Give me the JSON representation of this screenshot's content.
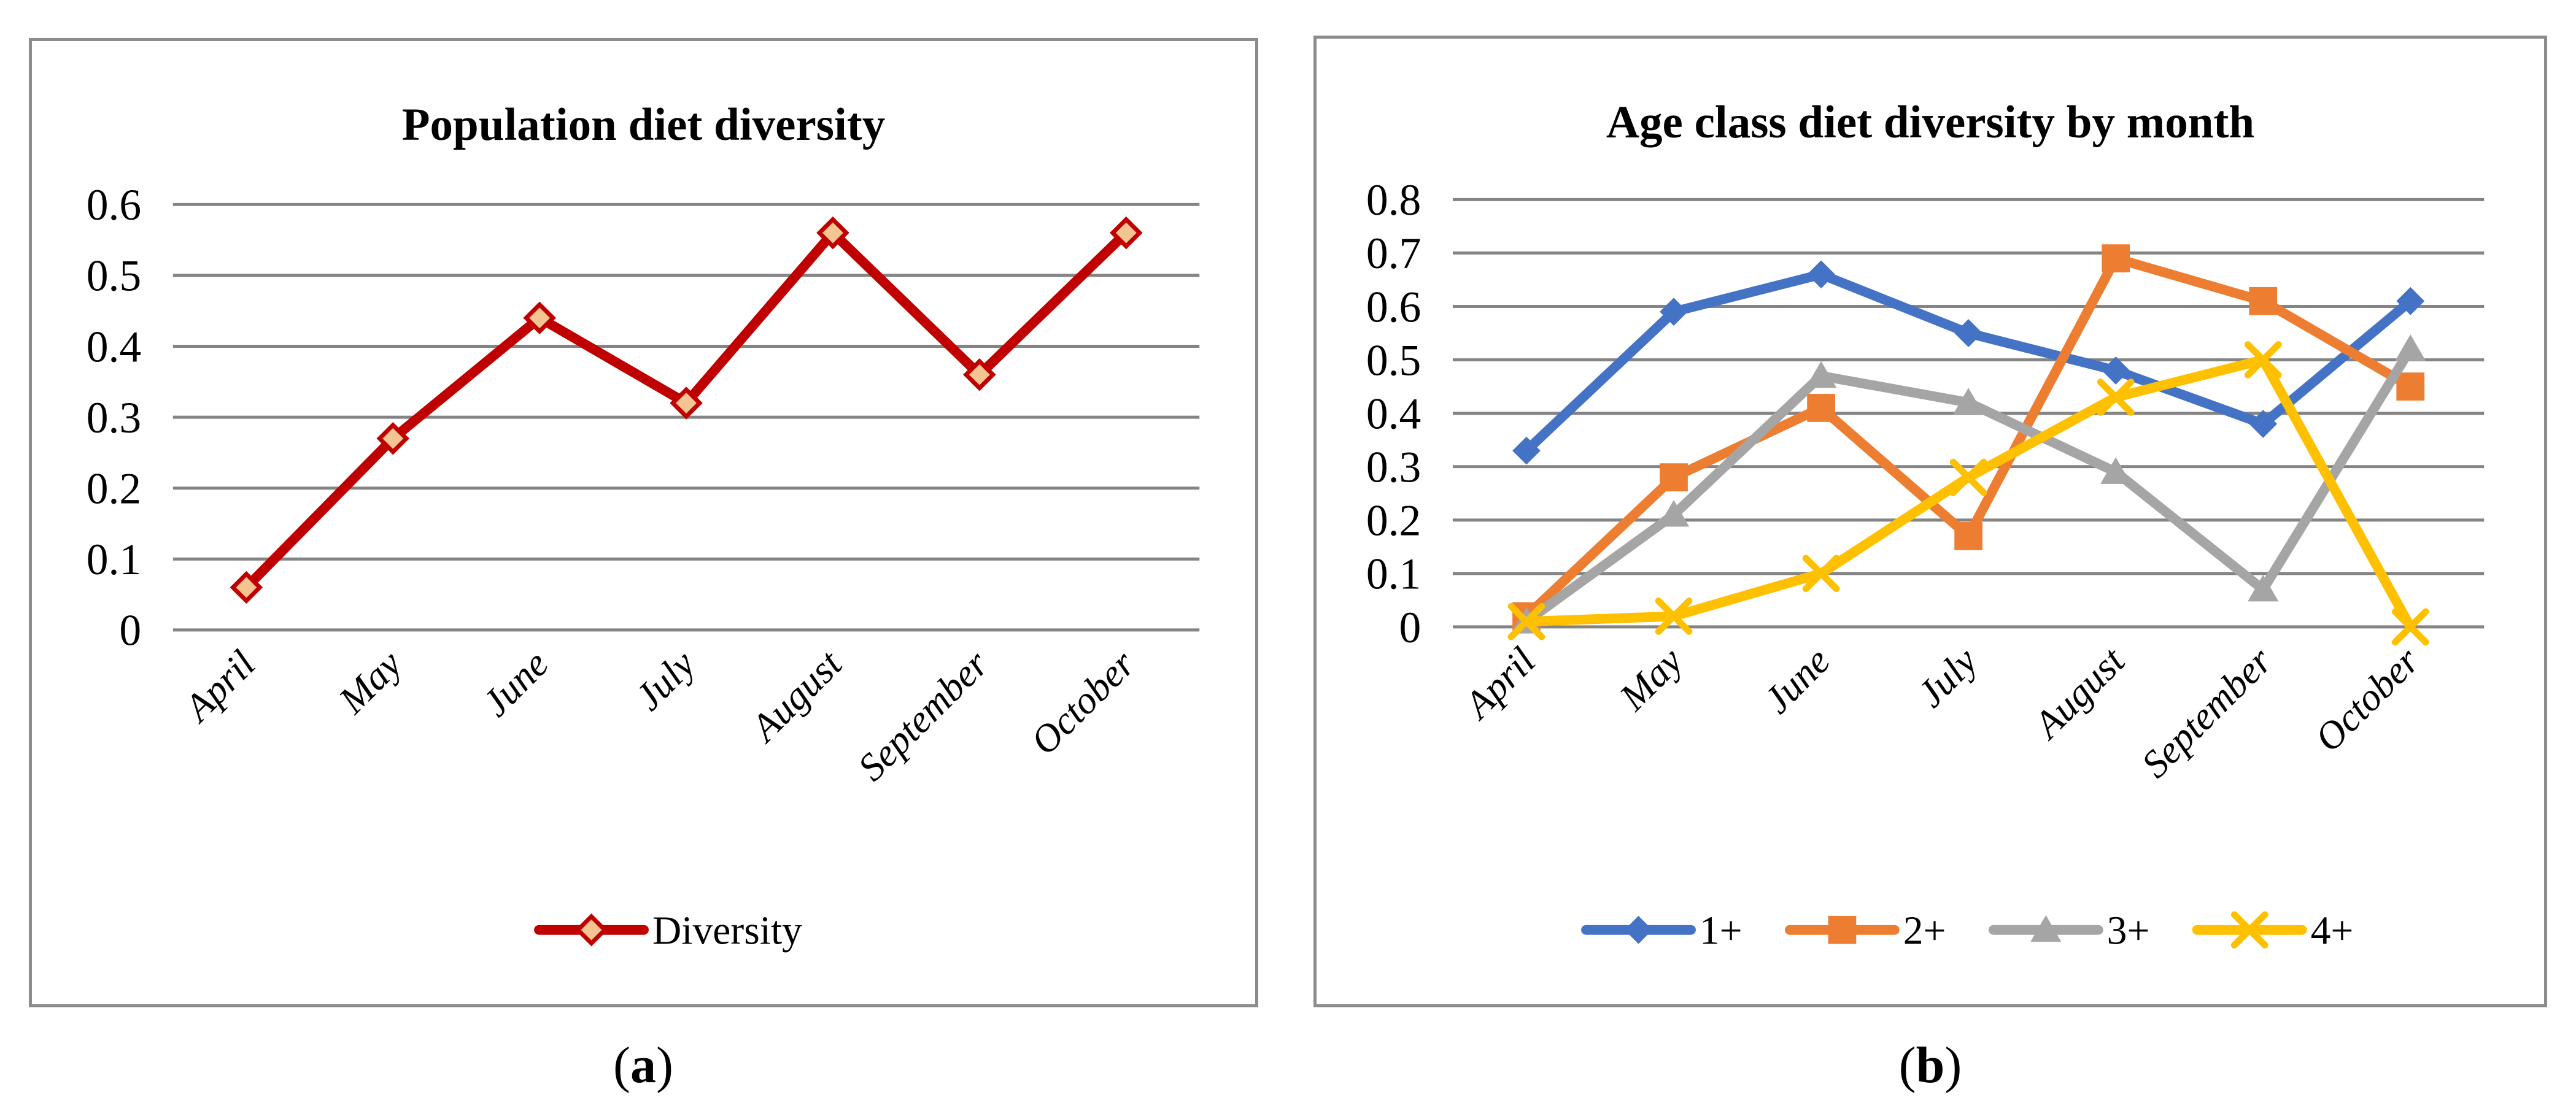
{
  "page": {
    "background": "#ffffff",
    "captions": [
      {
        "open": "(",
        "letter": "a",
        "close": ")"
      },
      {
        "open": "(",
        "letter": "b",
        "close": ")"
      }
    ]
  },
  "styles": {
    "gridline_color": "#848484",
    "panel_border_color": "#8c8c8c",
    "text_color": "#000000"
  },
  "chart_data": [
    {
      "id": "a",
      "type": "line",
      "title": "Population diet diversity",
      "categories": [
        "April",
        "May",
        "June",
        "July",
        "August",
        "September",
        "October"
      ],
      "series": [
        {
          "name": "Diversity",
          "color": "#C00000",
          "marker": "diamond",
          "marker_fill": "#F4C593",
          "marker_stroke": "#C00000",
          "values": [
            0.06,
            0.27,
            0.44,
            0.32,
            0.56,
            0.36,
            0.56
          ]
        }
      ],
      "ylim": [
        0,
        0.6
      ],
      "ytick_step": 0.1,
      "ytick_labels": [
        "0",
        "0.1",
        "0.2",
        "0.3",
        "0.4",
        "0.5",
        "0.6"
      ],
      "grid": true,
      "legend_position": "bottom",
      "caption": "(a)"
    },
    {
      "id": "b",
      "type": "line",
      "title": "Age class diet diversity by month",
      "categories": [
        "April",
        "May",
        "June",
        "July",
        "August",
        "September",
        "October"
      ],
      "series": [
        {
          "name": "1+",
          "color": "#4472C4",
          "marker": "diamond",
          "values": [
            0.33,
            0.59,
            0.66,
            0.55,
            0.48,
            0.38,
            0.61
          ]
        },
        {
          "name": "2+",
          "color": "#ED7D31",
          "marker": "square",
          "values": [
            0.02,
            0.28,
            0.41,
            0.17,
            0.69,
            0.61,
            0.45
          ]
        },
        {
          "name": "3+",
          "color": "#A5A5A5",
          "marker": "triangle",
          "values": [
            0.01,
            0.21,
            0.47,
            0.42,
            0.29,
            0.07,
            0.52
          ]
        },
        {
          "name": "4+",
          "color": "#FFC000",
          "marker": "x",
          "values": [
            0.01,
            0.02,
            0.1,
            0.28,
            0.43,
            0.5,
            0.0
          ]
        }
      ],
      "ylim": [
        0,
        0.8
      ],
      "ytick_step": 0.1,
      "ytick_labels": [
        "0",
        "0.1",
        "0.2",
        "0.3",
        "0.4",
        "0.5",
        "0.6",
        "0.7",
        "0.8"
      ],
      "grid": true,
      "legend_position": "bottom",
      "caption": "(b)"
    }
  ]
}
